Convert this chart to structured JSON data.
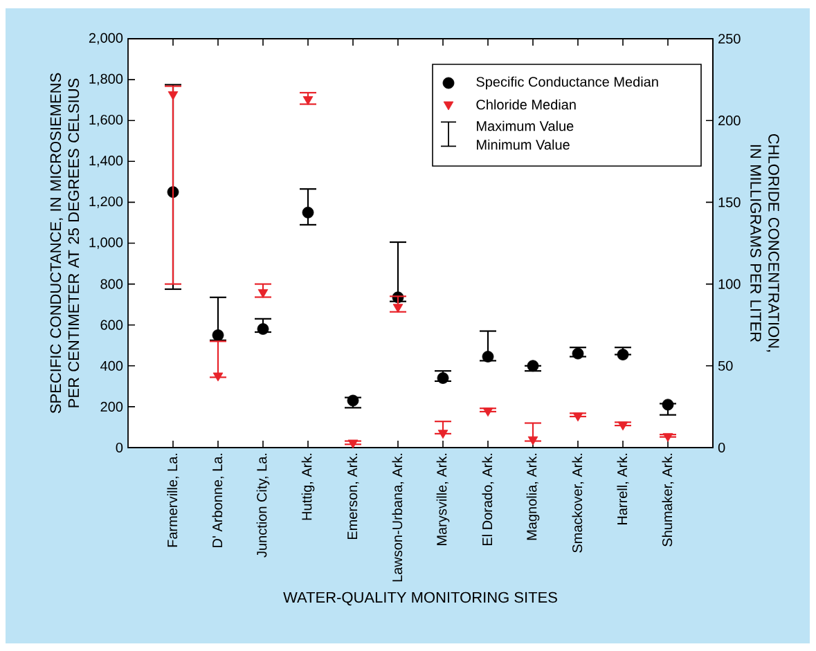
{
  "chart_data": {
    "type": "scatter",
    "xlabel": "WATER-QUALITY MONITORING SITES",
    "ylabel": "SPECIFIC CONDUCTANCE, IN MICROSIEMENS PER CENTIMETER AT 25 DEGREES CELSIUS",
    "y2label": "CHLORIDE CONCENTRATION, IN MILLIGRAMS PER LITER",
    "categories": [
      "Farmerville, La.",
      "D' Arbonne, La.",
      "Junction City, La.",
      "Huttig, Ark.",
      "Emerson, Ark.",
      "Lawson-Urbana, Ark.",
      "Marysville, Ark.",
      "El Dorado, Ark.",
      "Magnolia, Ark.",
      "Smackover, Ark.",
      "Harrell, Ark.",
      "Shumaker, Ark."
    ],
    "series": [
      {
        "name": "Specific Conductance Median",
        "color": "#000000",
        "marker": "circle",
        "values": [
          1250,
          550,
          580,
          1150,
          230,
          735,
          340,
          445,
          400,
          460,
          455,
          210
        ],
        "errors": [
          [
            775,
            1775
          ],
          [
            525,
            735
          ],
          [
            565,
            630
          ],
          [
            1090,
            1265
          ],
          [
            195,
            245
          ],
          [
            715,
            1005
          ],
          [
            325,
            375
          ],
          [
            425,
            570
          ],
          [
            375,
            400
          ],
          [
            445,
            490
          ],
          [
            455,
            490
          ],
          [
            160,
            215
          ]
        ]
      },
      {
        "name": "Chloride Median",
        "color": "#e8232a",
        "marker": "triangle",
        "axis": "y2",
        "values": [
          216,
          44,
          95,
          213,
          3,
          86,
          9,
          22.5,
          5,
          19.5,
          14,
          7
        ],
        "errors": [
          [
            100,
            221
          ],
          [
            43,
            65
          ],
          [
            92,
            100
          ],
          [
            210,
            217
          ],
          [
            2,
            4
          ],
          [
            83,
            92.5
          ],
          [
            8.5,
            16
          ],
          [
            22,
            24
          ],
          [
            4,
            15
          ],
          [
            19,
            21
          ],
          [
            13.5,
            15.5
          ],
          [
            6.5,
            8
          ]
        ]
      }
    ],
    "ylim": [
      0,
      2000
    ],
    "yticks": [
      0,
      200,
      400,
      600,
      800,
      {
        "value": 1000,
        "label": "1,000"
      },
      {
        "value": 1200,
        "label": "1,200"
      },
      {
        "value": 1400,
        "label": "1,400"
      },
      {
        "value": 1600,
        "label": "1,600"
      },
      {
        "value": 1800,
        "label": "1,800"
      },
      {
        "value": 2000,
        "label": "2,000"
      }
    ],
    "y2lim": [
      0,
      250
    ],
    "y2ticks": [
      0,
      50,
      100,
      150,
      200,
      250
    ],
    "legend": "top right",
    "annotations": [
      "Maximum Value",
      "Minimum Value"
    ]
  }
}
